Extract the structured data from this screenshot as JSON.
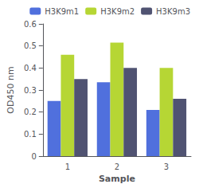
{
  "chart_data": {
    "type": "bar",
    "title": "",
    "xlabel": "Sample",
    "ylabel": "OD450 nm",
    "categories": [
      "1",
      "2",
      "3"
    ],
    "series": [
      {
        "name": "H3K9m1",
        "values": [
          0.25,
          0.335,
          0.21
        ]
      },
      {
        "name": "H3K9m2",
        "values": [
          0.46,
          0.515,
          0.4
        ]
      },
      {
        "name": "H3K9m3",
        "values": [
          0.35,
          0.4,
          0.26
        ]
      }
    ],
    "ylim": [
      0,
      0.6
    ],
    "yticks": [
      0,
      0.1,
      0.2,
      0.3,
      0.4,
      0.5,
      0.6
    ],
    "grid": false,
    "legend": "upper right"
  }
}
